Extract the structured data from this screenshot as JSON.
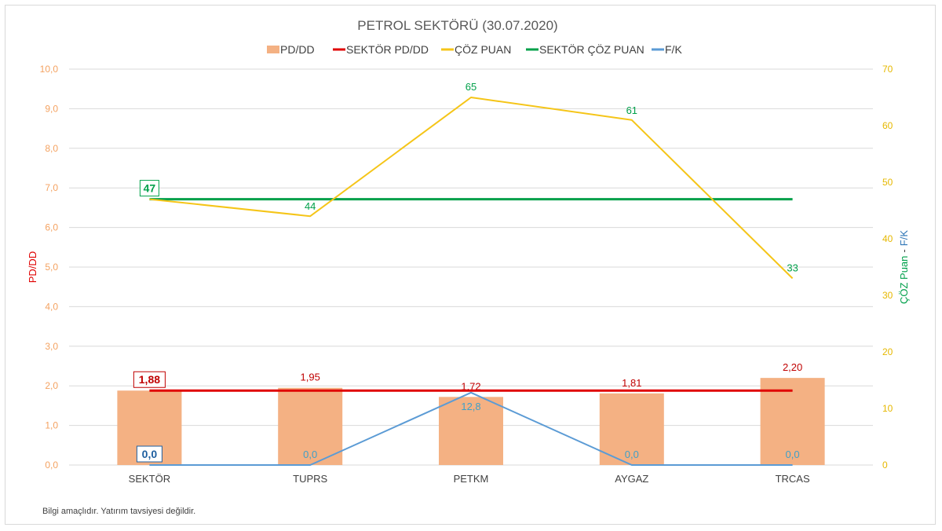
{
  "chart_data": {
    "type": "bar",
    "title": "PETROL SEKTÖRÜ  (30.07.2020)",
    "categories": [
      "SEKTÖR",
      "TUPRS",
      "PETKM",
      "AYGAZ",
      "TRCAS"
    ],
    "ylabel_left": "PD/DD",
    "ylabel_right_part1": "ÇÖZ Puan",
    "ylabel_right_sep": "-",
    "ylabel_right_part2": "F/K",
    "ylim_left": [
      0,
      10
    ],
    "ylim_right": [
      0,
      70
    ],
    "yticks_left": [
      "0,0",
      "1,0",
      "2,0",
      "3,0",
      "4,0",
      "5,0",
      "6,0",
      "7,0",
      "8,0",
      "9,0",
      "10,0"
    ],
    "yticks_right": [
      "0",
      "10",
      "20",
      "30",
      "40",
      "50",
      "60",
      "70"
    ],
    "grid": true,
    "legend_position": "top",
    "series": [
      {
        "name": "PD/DD",
        "type": "bar",
        "axis": "left",
        "color": "#f4b183",
        "values": [
          1.88,
          1.95,
          1.72,
          1.81,
          2.2
        ],
        "labels": [
          "1,88",
          "1,95",
          "1,72",
          "1,81",
          "2,20"
        ]
      },
      {
        "name": "SEKTÖR PD/DD",
        "type": "line",
        "axis": "left",
        "color": "#e00000",
        "values": [
          1.88,
          1.88,
          1.88,
          1.88,
          1.88
        ]
      },
      {
        "name": "ÇÖZ PUAN",
        "type": "line",
        "axis": "right",
        "color": "#f5c518",
        "values": [
          47,
          44,
          65,
          61,
          33
        ],
        "labels": [
          "47",
          "44",
          "65",
          "61",
          "33"
        ]
      },
      {
        "name": "SEKTÖR ÇÖZ PUAN",
        "type": "line",
        "axis": "right",
        "color": "#00a04a",
        "values": [
          47,
          47,
          47,
          47,
          47
        ]
      },
      {
        "name": "F/K",
        "type": "line",
        "axis": "right",
        "color": "#5b9bd5",
        "values": [
          0,
          0,
          12.8,
          0,
          0
        ],
        "labels": [
          "0,0",
          "0,0",
          "12,8",
          "0,0",
          "0,0"
        ]
      }
    ],
    "note": "Bilgi amaçlıdır. Yatırım tavsiyesi değildir."
  }
}
